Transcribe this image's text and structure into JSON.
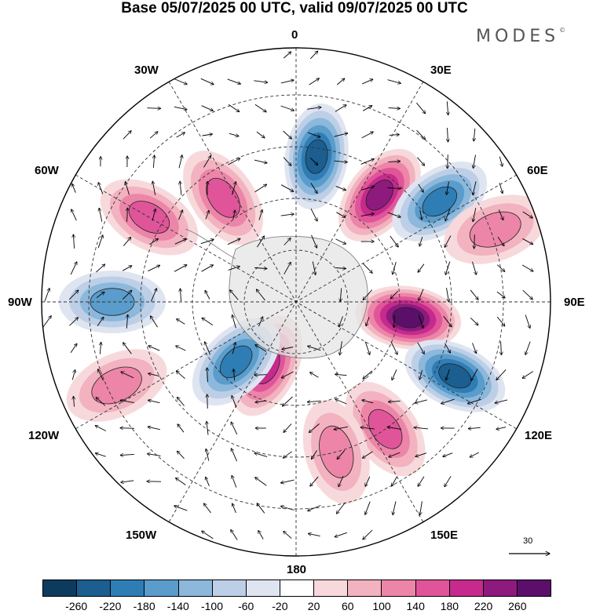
{
  "title": "Base 05/07/2025 00 UTC, valid 09/07/2025 00 UTC",
  "brand": {
    "name": "MODES",
    "mark": "©"
  },
  "longitude_labels": {
    "0": "0",
    "30E": "30E",
    "60E": "60E",
    "90E": "90E",
    "120E": "120E",
    "150E": "150E",
    "180": "180",
    "150W": "150W",
    "120W": "120W",
    "90W": "90W",
    "60W": "60W",
    "30W": "30W"
  },
  "vector_scale_label": "30",
  "colorbar": {
    "colors": [
      "#0d3b5e",
      "#1b5e8f",
      "#2f7db5",
      "#5a9ccb",
      "#8cb8dc",
      "#bccfe6",
      "#dfe4f1",
      "#ffffff",
      "#f7d9dc",
      "#f2b2bf",
      "#ec85a8",
      "#e0559a",
      "#c62a8c",
      "#8e1a7e",
      "#5b0f6b"
    ],
    "ticks": [
      "-260",
      "-220",
      "-180",
      "-140",
      "-100",
      "-60",
      "-20",
      "20",
      "60",
      "100",
      "140",
      "180",
      "220",
      "260"
    ]
  },
  "anomaly_blobs": [
    {
      "lon": 8,
      "colat": 52,
      "value": -230
    },
    {
      "lon": 38,
      "colat": 48,
      "value": 215
    },
    {
      "lon": 55,
      "colat": 62,
      "value": -190
    },
    {
      "lon": 98,
      "colat": 40,
      "value": 240
    },
    {
      "lon": 115,
      "colat": 62,
      "value": -210
    },
    {
      "lon": 145,
      "colat": 55,
      "value": 120
    },
    {
      "lon": 165,
      "colat": 55,
      "value": 110
    },
    {
      "lon": -155,
      "colat": 25,
      "value": 170
    },
    {
      "lon": -135,
      "colat": 30,
      "value": -160
    },
    {
      "lon": -90,
      "colat": 65,
      "value": -150
    },
    {
      "lon": -60,
      "colat": 60,
      "value": 150
    },
    {
      "lon": -35,
      "colat": 45,
      "value": 130
    },
    {
      "lon": -115,
      "colat": 70,
      "value": 90
    },
    {
      "lon": 70,
      "colat": 75,
      "value": 110
    }
  ]
}
